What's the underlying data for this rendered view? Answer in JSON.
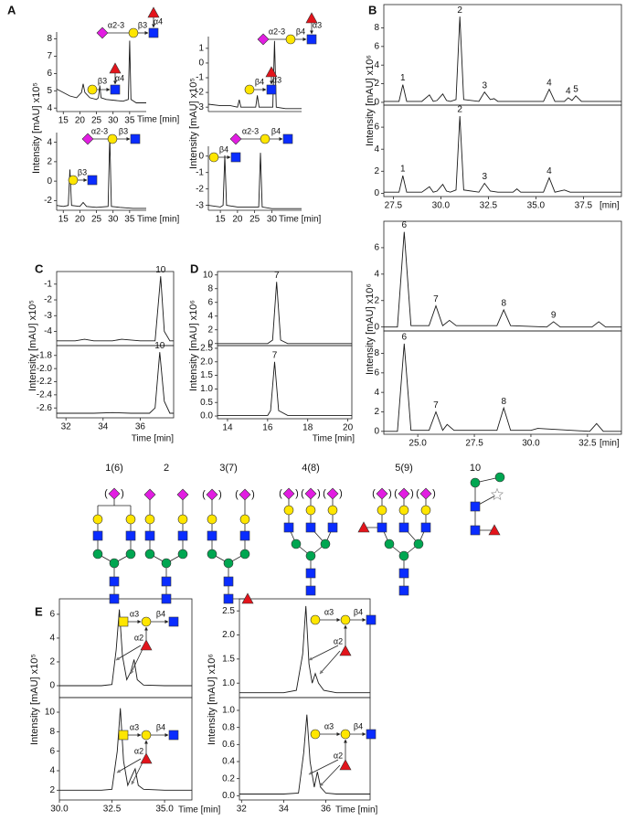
{
  "panel_labels": [
    "A",
    "B",
    "C",
    "D",
    "E"
  ],
  "chart_data": [
    {
      "type": "line",
      "ylabel": "Intensity [mAU] x10⁵",
      "xlabel": "Time [min]",
      "color": "#1a1a1a",
      "x": [
        13,
        17,
        19,
        20.5,
        21,
        21.5,
        23,
        25,
        25.6,
        26,
        26.4,
        28,
        33,
        34.6,
        35,
        35.4,
        37,
        40
      ],
      "values": [
        5.1,
        4.7,
        4.6,
        4.9,
        5.4,
        4.9,
        4.6,
        4.5,
        4.6,
        5.3,
        4.6,
        4.5,
        4.4,
        4.5,
        7.9,
        4.5,
        4.3,
        4.3
      ],
      "xlim": [
        13,
        40
      ],
      "ylim": [
        3.8,
        8.4
      ],
      "xticks": [
        15,
        20,
        25,
        30,
        35
      ],
      "yticks": [
        4,
        5,
        6,
        7,
        8
      ],
      "insets": [
        [
          "α2-3",
          "β3",
          "α4"
        ],
        [
          "β3",
          "α4"
        ]
      ]
    },
    {
      "type": "line",
      "xlabel": "Time [min]",
      "color": "#1a1a1a",
      "x": [
        13,
        15,
        16.5,
        17,
        17.5,
        20,
        21,
        22,
        25,
        28.5,
        29,
        29.5,
        32,
        36,
        40
      ],
      "values": [
        -2.5,
        -2.6,
        -2.5,
        1.2,
        -2.5,
        -2.6,
        -2.2,
        -2.6,
        -2.7,
        -2.6,
        4.6,
        -2.6,
        -2.7,
        -2.8,
        -2.8
      ],
      "xlim": [
        13,
        40
      ],
      "ylim": [
        -3,
        5
      ],
      "xticks": [
        15,
        20,
        25,
        30,
        35
      ],
      "yticks": [
        4,
        2,
        0,
        -2
      ],
      "insets": [
        [
          "α2-3",
          "β3"
        ],
        [
          "β3"
        ]
      ]
    },
    {
      "type": "line",
      "ylabel": "Intensity [mAU] x10⁵",
      "color": "#1a1a1a",
      "x": [
        11.5,
        15,
        18,
        20,
        20.5,
        21,
        23,
        25.3,
        25.8,
        26.3,
        28,
        30.3,
        30.8,
        31.3,
        34,
        38.7
      ],
      "values": [
        -2.8,
        -2.9,
        -2.9,
        -3.0,
        -2.5,
        -3.0,
        -3.0,
        -3.0,
        -2.2,
        -3.0,
        -3.0,
        -3.0,
        1.5,
        -3.0,
        -3.1,
        -3.1
      ],
      "xlim": [
        11.5,
        38.7
      ],
      "ylim": [
        -3.3,
        1.8
      ],
      "yticks": [
        1,
        0,
        -1,
        -2,
        -3
      ],
      "insets": [
        [
          "α2-3",
          "β4",
          "α3"
        ],
        [
          "β4",
          "α3"
        ]
      ]
    },
    {
      "type": "line",
      "xlabel": "Time [min]",
      "color": "#1a1a1a",
      "x": [
        11.5,
        15,
        15.8,
        16.3,
        16.8,
        20,
        25,
        26.2,
        26.7,
        27.2,
        30,
        38.7
      ],
      "values": [
        -3.0,
        -3.1,
        -3.0,
        0.05,
        -3.0,
        -3.1,
        -3.1,
        -3.1,
        0.2,
        -3.1,
        -3.2,
        -3.2
      ],
      "xlim": [
        11.5,
        38.7
      ],
      "ylim": [
        -3.3,
        0.6
      ],
      "xticks": [
        15,
        20,
        25,
        30
      ],
      "yticks": [
        0,
        -1,
        -2,
        -3
      ],
      "insets": [
        [
          "α2-3",
          "β4"
        ],
        [
          "β4"
        ]
      ]
    },
    {
      "type": "line",
      "ylabel": "Intensity [mAU] x10⁶",
      "color": "#1a1a1a",
      "x": [
        27,
        27.8,
        28,
        28.2,
        29,
        29.4,
        29.6,
        29.8,
        30.1,
        30.3,
        30.5,
        30.8,
        31,
        31.2,
        32,
        32.3,
        32.6,
        32.8,
        33,
        34,
        35.4,
        35.7,
        36,
        36.5,
        36.7,
        36.9,
        37.1,
        37.4,
        38,
        39.5
      ],
      "values": [
        0.1,
        0.1,
        1.9,
        0.1,
        0.1,
        0.8,
        0.1,
        0.2,
        0.9,
        0.2,
        0.1,
        0.3,
        9.2,
        0.3,
        0.1,
        1.1,
        0.3,
        0.4,
        0.1,
        0.1,
        0.1,
        1.4,
        0.1,
        0.1,
        0.5,
        0.2,
        0.7,
        0.1,
        0.1,
        0.1
      ],
      "point_labels": [
        null,
        null,
        "1",
        null,
        null,
        null,
        null,
        null,
        null,
        null,
        null,
        null,
        "2",
        null,
        null,
        "3",
        null,
        null,
        null,
        null,
        null,
        "4",
        null,
        null,
        "4",
        null,
        "5",
        null,
        null,
        null
      ],
      "xlim": [
        27,
        39.5
      ],
      "ylim": [
        -0.3,
        10.5
      ],
      "yticks": [
        0,
        2,
        4,
        6,
        8
      ]
    },
    {
      "type": "line",
      "xlabel": "[min]",
      "color": "#1a1a1a",
      "x": [
        27,
        27.8,
        28,
        28.2,
        29,
        29.4,
        29.6,
        29.8,
        30.1,
        30.3,
        30.5,
        30.8,
        31,
        31.2,
        32,
        32.3,
        32.6,
        33,
        33.8,
        34,
        34.2,
        35.4,
        35.7,
        36,
        36.5,
        36.8,
        38,
        39.5
      ],
      "values": [
        0.1,
        0.1,
        1.6,
        0.1,
        0.1,
        0.6,
        0.1,
        0.2,
        0.8,
        0.2,
        0.1,
        0.3,
        7.0,
        0.3,
        0.1,
        0.9,
        0.2,
        0.1,
        0.1,
        0.4,
        0.1,
        0.1,
        1.4,
        0.1,
        0.3,
        0.1,
        0.1,
        0.1
      ],
      "point_labels": [
        null,
        null,
        "1",
        null,
        null,
        null,
        null,
        null,
        null,
        null,
        null,
        null,
        "2",
        null,
        null,
        "3",
        null,
        null,
        null,
        null,
        null,
        null,
        "4",
        null,
        null,
        null,
        null,
        null
      ],
      "xlim": [
        27,
        39.5
      ],
      "ylim": [
        -0.3,
        8
      ],
      "yticks": [
        0,
        2,
        4,
        6
      ],
      "xticks": [
        27.5,
        {
          "value": 30,
          "label": "30.0"
        },
        32.5,
        {
          "value": 35,
          "label": "35.0"
        },
        37.5
      ]
    },
    {
      "type": "line",
      "ylabel": "Intensity [mAU] x10⁶",
      "color": "#1a1a1a",
      "x": [
        23.5,
        24.1,
        24.4,
        24.7,
        25.5,
        25.8,
        26.1,
        26.4,
        26.7,
        27.5,
        28.5,
        28.8,
        29.1,
        30.7,
        31,
        31.3,
        32.7,
        33,
        33.3,
        34
      ],
      "values": [
        0,
        0,
        7.2,
        0.1,
        0.1,
        1.6,
        0.1,
        0.5,
        0.1,
        0.1,
        0.1,
        1.3,
        0.1,
        0,
        0.4,
        0,
        0,
        0.4,
        0,
        0
      ],
      "point_labels": [
        null,
        null,
        "6",
        null,
        null,
        "7",
        null,
        null,
        null,
        null,
        null,
        "8",
        null,
        null,
        "9",
        null,
        null,
        null,
        null,
        null
      ],
      "xlim": [
        23.5,
        34
      ],
      "ylim": [
        -0.3,
        8
      ],
      "yticks": [
        0,
        2,
        4,
        6
      ]
    },
    {
      "type": "line",
      "xlabel": "[min]",
      "color": "#1a1a1a",
      "x": [
        23.5,
        24.1,
        24.4,
        24.7,
        25.5,
        25.8,
        26.1,
        26.3,
        26.6,
        28.5,
        28.8,
        29.1,
        30,
        30.3,
        32.6,
        32.9,
        33.2,
        34
      ],
      "values": [
        0,
        0,
        9.0,
        0.1,
        0.1,
        2.0,
        0.1,
        0.7,
        0.1,
        0.1,
        2.4,
        0.1,
        0.1,
        0.3,
        0,
        0.8,
        0,
        0
      ],
      "point_labels": [
        null,
        null,
        "6",
        null,
        null,
        "7",
        null,
        null,
        null,
        null,
        "8",
        null,
        null,
        null,
        null,
        null,
        null,
        null
      ],
      "xlim": [
        23.5,
        34
      ],
      "ylim": [
        -0.3,
        10.3
      ],
      "yticks": [
        0,
        2,
        4,
        6,
        8
      ],
      "xticks": [
        {
          "value": 25,
          "label": "25.0"
        },
        27.5,
        {
          "value": 30,
          "label": "30.0"
        },
        32.5
      ]
    },
    {
      "type": "line",
      "ylabel": "Intensity [mAU] x10⁵",
      "color": "#1a1a1a",
      "x": [
        31.5,
        32.5,
        33,
        33.5,
        34.5,
        35,
        36,
        36.8,
        37.1,
        37.3,
        37.6,
        37.8
      ],
      "values": [
        -4.6,
        -4.6,
        -4.5,
        -4.6,
        -4.6,
        -4.5,
        -4.6,
        -4.6,
        -0.5,
        -4.0,
        -4.6,
        -4.6
      ],
      "point_labels": [
        null,
        null,
        null,
        null,
        null,
        null,
        null,
        null,
        "10",
        null,
        null,
        null
      ],
      "xlim": [
        31.5,
        37.8
      ],
      "ylim": [
        -4.9,
        -0.2
      ],
      "yticks": [
        -1,
        -2,
        -3,
        -4
      ]
    },
    {
      "type": "line",
      "xlabel": "Time [min]",
      "color": "#1a1a1a",
      "x": [
        31.5,
        32.5,
        33.5,
        34.5,
        35.5,
        36.5,
        36.8,
        37.05,
        37.3,
        37.6,
        37.8
      ],
      "values": [
        -2.68,
        -2.68,
        -2.68,
        -2.67,
        -2.68,
        -2.68,
        -2.6,
        -1.75,
        -2.5,
        -2.68,
        -2.68
      ],
      "point_labels": [
        null,
        null,
        null,
        null,
        null,
        null,
        null,
        "10",
        null,
        null,
        null
      ],
      "xlim": [
        31.5,
        37.8
      ],
      "ylim": [
        -2.75,
        -1.65
      ],
      "xticks": [
        32,
        34,
        36
      ],
      "yticks": [
        -1.8,
        {
          "value": -2,
          "label": "-2.0"
        },
        -2.2,
        -2.4,
        -2.6
      ]
    },
    {
      "type": "line",
      "ylabel": "Intensity [mAU] x10⁶",
      "color": "#1a1a1a",
      "x": [
        13.5,
        15,
        16,
        16.25,
        16.45,
        16.65,
        17,
        18,
        20.2
      ],
      "values": [
        0,
        0,
        0,
        0.5,
        9.0,
        0.5,
        0,
        0,
        0
      ],
      "point_labels": [
        null,
        null,
        null,
        null,
        "7",
        null,
        null,
        null,
        null
      ],
      "xlim": [
        13.5,
        20.2
      ],
      "ylim": [
        -0.3,
        10.5
      ],
      "yticks": [
        0,
        2,
        4,
        6,
        8,
        10
      ]
    },
    {
      "type": "line",
      "xlabel": "Time [min]",
      "color": "#1a1a1a",
      "x": [
        13.5,
        15,
        16,
        16.15,
        16.35,
        16.55,
        17,
        18,
        20.2
      ],
      "values": [
        0.02,
        0.02,
        0.02,
        0.2,
        2.0,
        0.2,
        0.02,
        0.02,
        0.02
      ],
      "point_labels": [
        null,
        null,
        null,
        null,
        "7",
        null,
        null,
        null,
        null
      ],
      "xlim": [
        13.5,
        20.2
      ],
      "ylim": [
        -0.1,
        2.6
      ],
      "xticks": [
        14,
        16,
        18,
        20
      ],
      "yticks": [
        {
          "value": 0,
          "label": "0.0"
        },
        0.5,
        {
          "value": 1,
          "label": "1.0"
        },
        1.5,
        {
          "value": 2,
          "label": "2.0"
        },
        2.5
      ]
    },
    {
      "type": "line",
      "ylabel": "Intensity [mAU] x10⁵",
      "color": "#1a1a1a",
      "x": [
        30,
        32,
        32.5,
        32.7,
        32.85,
        33.0,
        33.2,
        33.4,
        33.55,
        33.7,
        34,
        35,
        36.3
      ],
      "values": [
        0,
        0,
        0.1,
        3,
        6.4,
        2.5,
        0.5,
        1.2,
        2.2,
        0.5,
        0.05,
        0,
        0
      ],
      "xlim": [
        30,
        36.3
      ],
      "ylim": [
        -1,
        7.3
      ],
      "yticks": [
        0,
        2,
        4,
        6
      ],
      "insets": [
        [
          "α3",
          "β4",
          "α2"
        ]
      ]
    },
    {
      "type": "line",
      "xlabel": "Time [min]",
      "color": "#1a1a1a",
      "x": [
        30,
        32,
        32.5,
        32.75,
        32.9,
        33.05,
        33.25,
        33.45,
        33.6,
        33.75,
        34,
        35,
        36.3
      ],
      "values": [
        2,
        2,
        2.1,
        6,
        10.4,
        5,
        2.5,
        3.5,
        4.2,
        2.5,
        2.1,
        2,
        2
      ],
      "xlim": [
        30,
        36.3
      ],
      "ylim": [
        1,
        11.5
      ],
      "yticks": [
        2,
        4,
        6,
        8,
        10
      ],
      "xticks": [
        {
          "value": 30,
          "label": "30.0"
        },
        32.5,
        {
          "value": 35,
          "label": "35.0"
        }
      ],
      "insets": [
        [
          "α3",
          "β4",
          "α2"
        ]
      ]
    },
    {
      "type": "line",
      "ylabel": "Intensity [mAU] x10⁶",
      "color": "#1a1a1a",
      "x": [
        31.9,
        34,
        34.6,
        34.9,
        35.05,
        35.2,
        35.35,
        35.5,
        35.65,
        35.9,
        36.5,
        38.1
      ],
      "values": [
        0.8,
        0.8,
        0.85,
        1.6,
        2.6,
        1.4,
        1.0,
        1.2,
        1.0,
        0.85,
        0.8,
        0.8
      ],
      "xlim": [
        31.9,
        38.1
      ],
      "ylim": [
        0.7,
        2.75
      ],
      "yticks": [
        {
          "value": 1,
          "label": "1.0"
        },
        1.5,
        {
          "value": 2,
          "label": "2.0"
        },
        2.5
      ],
      "insets": [
        [
          "α3",
          "β4",
          "α2"
        ]
      ]
    },
    {
      "type": "line",
      "xlabel": "Time [min]",
      "color": "#1a1a1a",
      "x": [
        31.9,
        34,
        34.7,
        34.95,
        35.1,
        35.25,
        35.45,
        35.6,
        35.75,
        36,
        36.5,
        38.1
      ],
      "values": [
        0.02,
        0.02,
        0.03,
        0.5,
        0.95,
        0.4,
        0.1,
        0.28,
        0.1,
        0.03,
        0.02,
        0.02
      ],
      "xlim": [
        31.9,
        38.1
      ],
      "ylim": [
        -0.05,
        1.15
      ],
      "xticks": [
        32,
        34,
        36
      ],
      "yticks": [
        {
          "value": 0,
          "label": "0.0"
        },
        0.2,
        0.4,
        0.6,
        0.8,
        {
          "value": 1,
          "label": "1.0"
        }
      ],
      "insets": [
        [
          "α3",
          "β4",
          "α2"
        ]
      ]
    }
  ],
  "glycans": {
    "labels": [
      "1(6)",
      "2",
      "3(7)",
      "4(8)",
      "5(9)",
      "10"
    ],
    "paren_open": "(",
    "paren_close": ")"
  }
}
